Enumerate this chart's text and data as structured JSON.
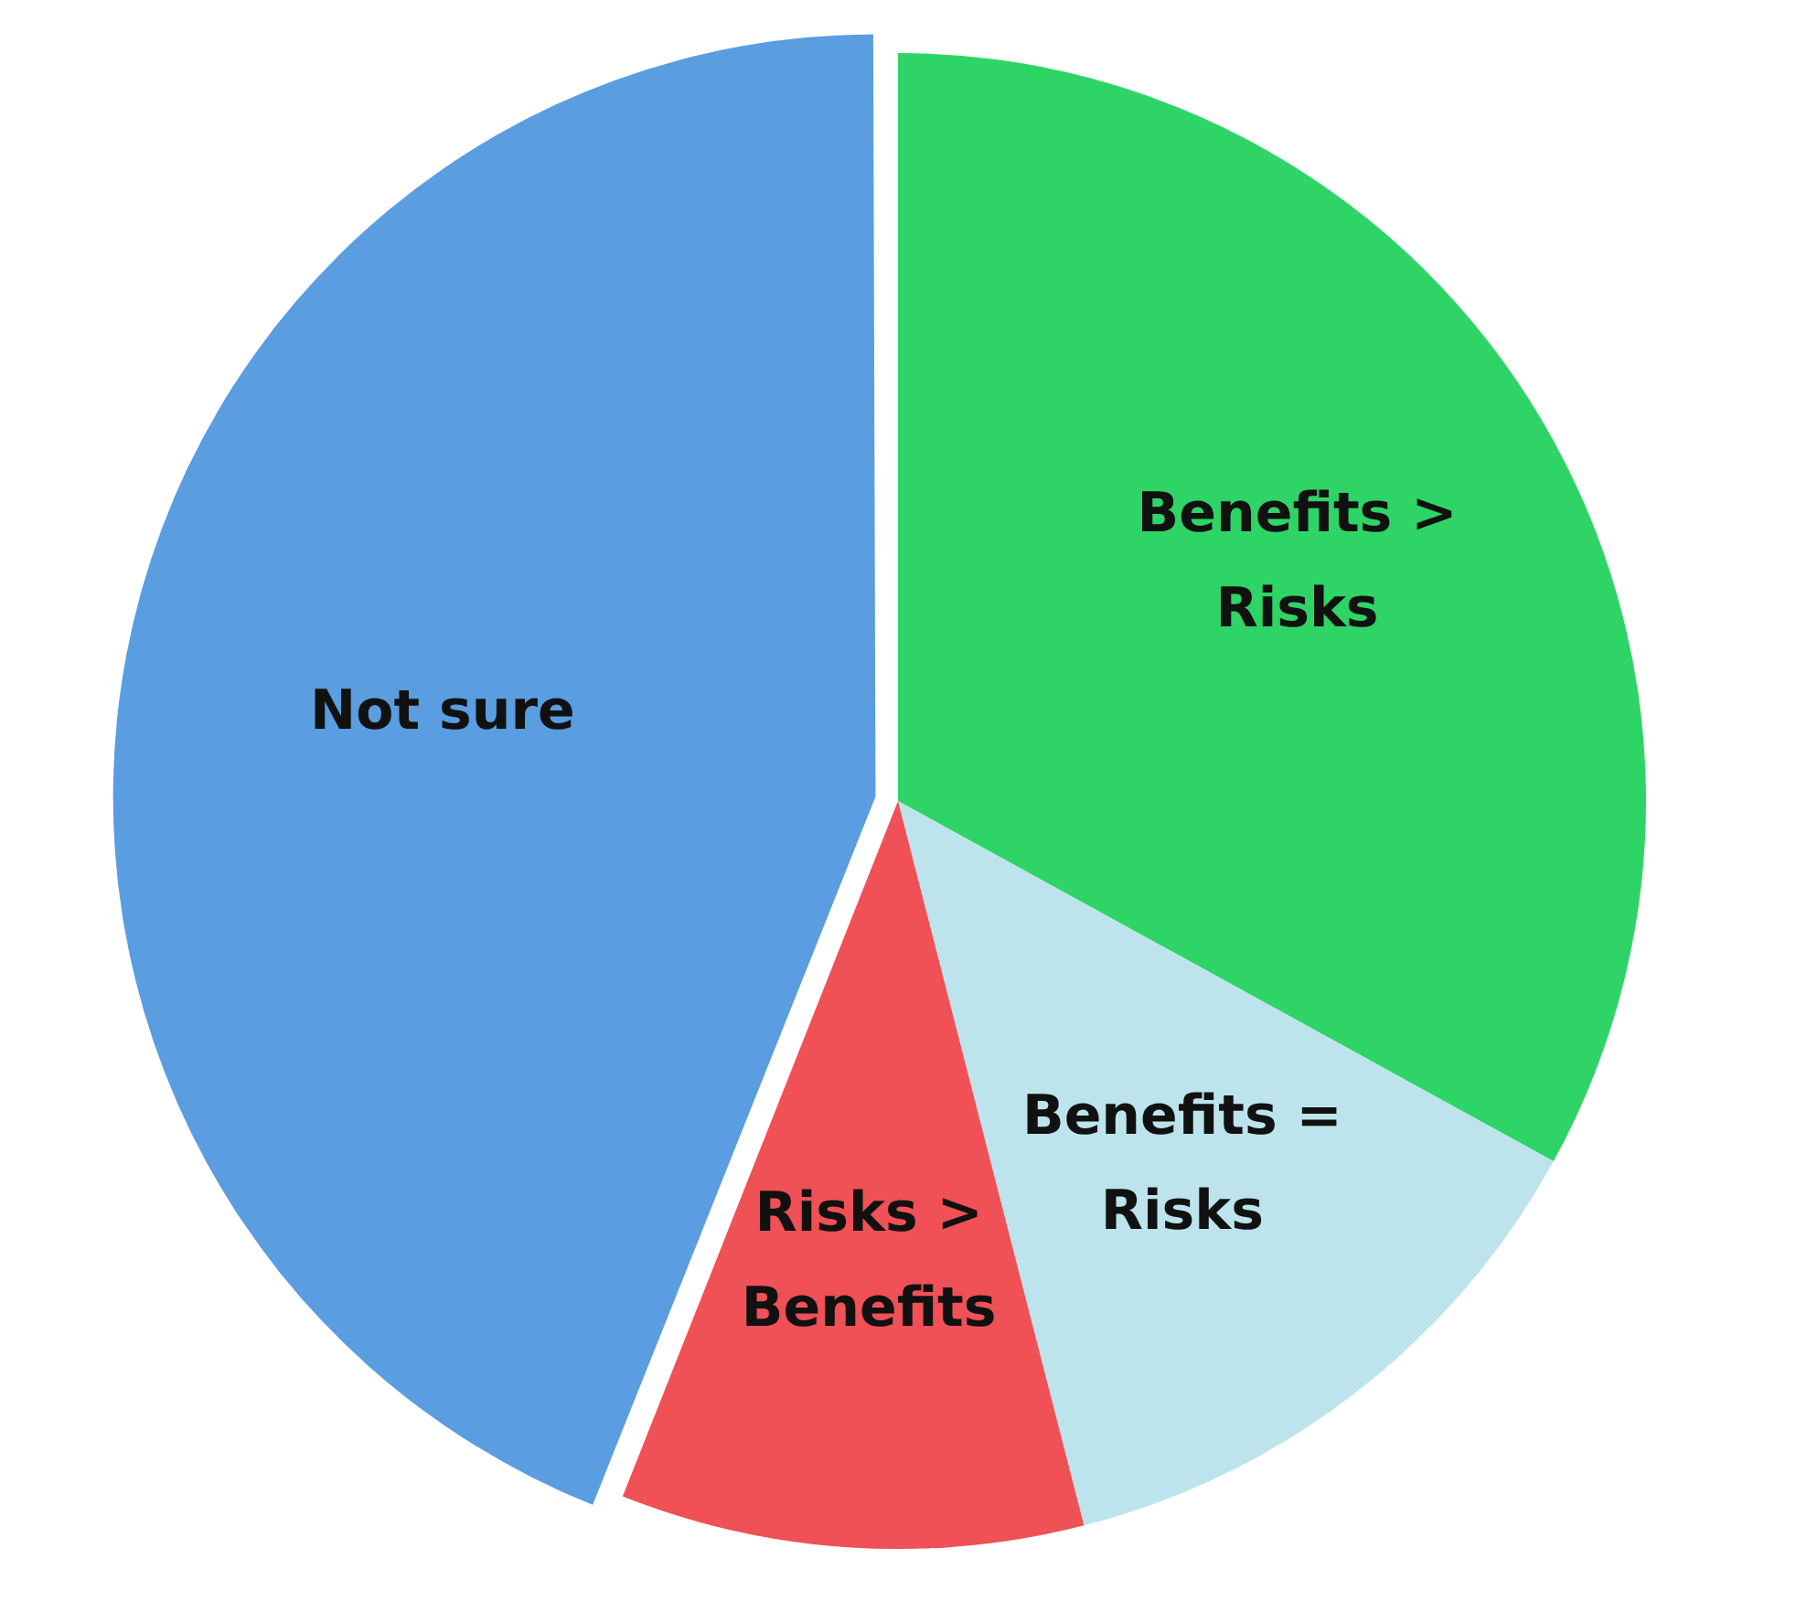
{
  "chart_data": {
    "type": "pie",
    "categories": [
      "Benefits > Risks",
      "Benefits = Risks",
      "Risks > Benefits",
      "Not sure"
    ],
    "values": [
      33,
      13,
      10,
      44
    ],
    "colors": [
      "#2ed566",
      "#bde4ec",
      "#ef5156",
      "#5a9de0"
    ],
    "legend": false
  }
}
